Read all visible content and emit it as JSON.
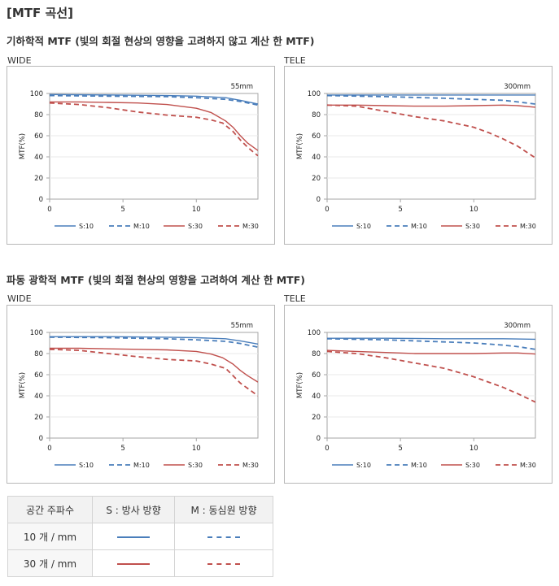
{
  "page": {
    "title": "[MTF 곡선]",
    "geometric_title": "기하학적 MTF (빛의 회절 현상의 영향을 고려하지 않고 계산 한 MTF)",
    "diffraction_title": "파동 광학적 MTF (빛의 회절 현상의 영향을 고려하여 계산 한 MTF)",
    "wide_label": "WIDE",
    "tele_label": "TELE"
  },
  "colors": {
    "blue": "#4a7ebb",
    "red": "#c0504d"
  },
  "legend_table": {
    "headers": [
      "공간 주파수",
      "S : 방사 방향",
      "M : 동심원 방향"
    ],
    "rows": [
      {
        "label": "10 개 / mm",
        "s_color": "#4a7ebb",
        "m_color": "#4a7ebb"
      },
      {
        "label": "30 개 / mm",
        "s_color": "#c0504d",
        "m_color": "#c0504d"
      }
    ]
  },
  "chart_data": [
    {
      "id": "geo-wide",
      "type": "line",
      "focal_label": "55mm",
      "ylabel": "MTF(%)",
      "xlim": [
        0,
        14.2
      ],
      "ylim": [
        0,
        100
      ],
      "xticks": [
        0,
        5,
        10
      ],
      "yticks": [
        0,
        20,
        40,
        60,
        80,
        100
      ],
      "legend": [
        "S:10",
        "M:10",
        "S:30",
        "M:30"
      ],
      "series": [
        {
          "name": "S:10",
          "color": "#4a7ebb",
          "dash": false,
          "x": [
            0,
            4,
            8,
            10,
            12,
            13,
            14.2
          ],
          "y": [
            99,
            98.6,
            98,
            97.5,
            96,
            93.5,
            90
          ]
        },
        {
          "name": "M:10",
          "color": "#4a7ebb",
          "dash": true,
          "x": [
            0,
            4,
            8,
            10,
            12,
            13,
            14.2
          ],
          "y": [
            98,
            97.5,
            97,
            96,
            94.5,
            92.5,
            89
          ]
        },
        {
          "name": "S:30",
          "color": "#c0504d",
          "dash": false,
          "x": [
            0,
            2,
            4,
            6,
            8,
            10,
            11,
            12,
            12.5,
            13,
            13.5,
            14.2
          ],
          "y": [
            92,
            92,
            91.5,
            91,
            89.5,
            86,
            82,
            74,
            68,
            60,
            53,
            46
          ]
        },
        {
          "name": "M:30",
          "color": "#c0504d",
          "dash": true,
          "x": [
            0,
            2,
            4,
            6,
            8,
            10,
            11,
            11.8,
            12.5,
            13,
            13.5,
            14.2
          ],
          "y": [
            91,
            89.5,
            86.5,
            82.5,
            79.5,
            77.5,
            75,
            72,
            64,
            56,
            49,
            41
          ]
        }
      ]
    },
    {
      "id": "geo-tele",
      "type": "line",
      "focal_label": "300mm",
      "ylabel": "MTF(%)",
      "xlim": [
        0,
        14.2
      ],
      "ylim": [
        0,
        100
      ],
      "xticks": [
        0,
        5,
        10
      ],
      "yticks": [
        0,
        20,
        40,
        60,
        80,
        100
      ],
      "legend": [
        "S:10",
        "M:10",
        "S:30",
        "M:30"
      ],
      "series": [
        {
          "name": "S:10",
          "color": "#4a7ebb",
          "dash": false,
          "x": [
            0,
            4,
            8,
            12,
            14.2
          ],
          "y": [
            98.5,
            98.5,
            98.5,
            98.5,
            98.5
          ]
        },
        {
          "name": "M:10",
          "color": "#4a7ebb",
          "dash": true,
          "x": [
            0,
            4,
            8,
            10,
            12,
            13,
            14.2
          ],
          "y": [
            98,
            97,
            95.5,
            94.5,
            93.5,
            92,
            90
          ]
        },
        {
          "name": "S:30",
          "color": "#c0504d",
          "dash": false,
          "x": [
            0,
            2,
            4,
            6,
            8,
            10,
            12,
            13,
            14.2
          ],
          "y": [
            89,
            89,
            88.5,
            88,
            88,
            88.5,
            89,
            88.5,
            87
          ]
        },
        {
          "name": "M:30",
          "color": "#c0504d",
          "dash": true,
          "x": [
            0,
            2,
            4,
            6,
            8,
            10,
            11,
            12,
            13,
            14.2
          ],
          "y": [
            89,
            88,
            83,
            78,
            74,
            68,
            63,
            57,
            50,
            39
          ]
        }
      ]
    },
    {
      "id": "diff-wide",
      "type": "line",
      "focal_label": "55mm",
      "ylabel": "MTF(%)",
      "xlim": [
        0,
        14.2
      ],
      "ylim": [
        0,
        100
      ],
      "xticks": [
        0,
        5,
        10
      ],
      "yticks": [
        0,
        20,
        40,
        60,
        80,
        100
      ],
      "legend": [
        "S:10",
        "M:10",
        "S:30",
        "M:30"
      ],
      "series": [
        {
          "name": "S:10",
          "color": "#4a7ebb",
          "dash": false,
          "x": [
            0,
            4,
            8,
            10,
            12,
            13,
            14.2
          ],
          "y": [
            96,
            96,
            95.5,
            95,
            94,
            92,
            89
          ]
        },
        {
          "name": "M:10",
          "color": "#4a7ebb",
          "dash": true,
          "x": [
            0,
            4,
            8,
            10,
            12,
            13,
            14.2
          ],
          "y": [
            95.5,
            95,
            94,
            93,
            91.5,
            89.5,
            86
          ]
        },
        {
          "name": "S:30",
          "color": "#c0504d",
          "dash": false,
          "x": [
            0,
            2,
            4,
            6,
            8,
            10,
            11,
            11.8,
            12.5,
            13,
            13.5,
            14.2
          ],
          "y": [
            85,
            85,
            84.5,
            84,
            83.5,
            82,
            79.5,
            76,
            70,
            64,
            59,
            53
          ]
        },
        {
          "name": "M:30",
          "color": "#c0504d",
          "dash": true,
          "x": [
            0,
            2,
            4,
            6,
            8,
            10,
            11,
            12,
            12.5,
            13,
            13.5,
            14.2
          ],
          "y": [
            84,
            83,
            80,
            77,
            74.5,
            73,
            70,
            66,
            59,
            52,
            47,
            40
          ]
        }
      ]
    },
    {
      "id": "diff-tele",
      "type": "line",
      "focal_label": "300mm",
      "ylabel": "MTF(%)",
      "xlim": [
        0,
        14.2
      ],
      "ylim": [
        0,
        100
      ],
      "xticks": [
        0,
        5,
        10
      ],
      "yticks": [
        0,
        20,
        40,
        60,
        80,
        100
      ],
      "legend": [
        "S:10",
        "M:10",
        "S:30",
        "M:30"
      ],
      "series": [
        {
          "name": "S:10",
          "color": "#4a7ebb",
          "dash": false,
          "x": [
            0,
            4,
            8,
            12,
            14.2
          ],
          "y": [
            94.5,
            94.5,
            94,
            94,
            93.5
          ]
        },
        {
          "name": "M:10",
          "color": "#4a7ebb",
          "dash": true,
          "x": [
            0,
            4,
            8,
            10,
            12,
            13,
            14.2
          ],
          "y": [
            94,
            93,
            91,
            90,
            88,
            86.5,
            84
          ]
        },
        {
          "name": "S:30",
          "color": "#c0504d",
          "dash": false,
          "x": [
            0,
            2,
            4,
            6,
            8,
            10,
            12,
            13,
            14.2
          ],
          "y": [
            83,
            82,
            81,
            80,
            80,
            80,
            80.5,
            80.5,
            79.5
          ]
        },
        {
          "name": "M:30",
          "color": "#c0504d",
          "dash": true,
          "x": [
            0,
            2,
            4,
            6,
            8,
            10,
            11,
            12,
            13,
            14.2
          ],
          "y": [
            82,
            80,
            76,
            71,
            66,
            58,
            53,
            48,
            42,
            34
          ]
        }
      ]
    }
  ]
}
